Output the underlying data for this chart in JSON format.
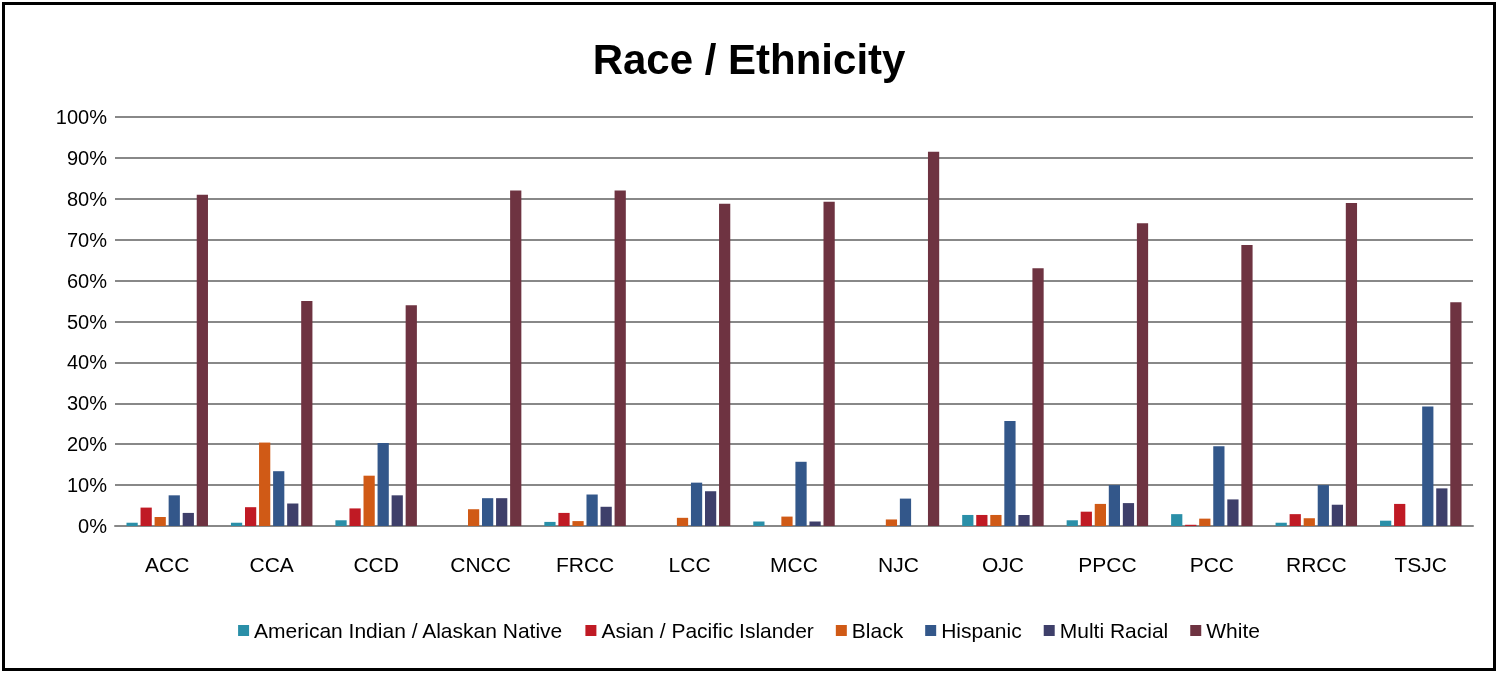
{
  "chart_data": {
    "type": "bar",
    "title": "Race / Ethnicity",
    "categories": [
      "ACC",
      "CCA",
      "CCD",
      "CNCC",
      "FRCC",
      "LCC",
      "MCC",
      "NJC",
      "OJC",
      "PPCC",
      "PCC",
      "RRCC",
      "TSJC"
    ],
    "series": [
      {
        "name": "American Indian / Alaskan Native",
        "color": "#2a8fa8",
        "values": [
          0.8,
          0.8,
          1.4,
          0,
          1.0,
          0,
          1.1,
          0,
          2.7,
          1.4,
          2.9,
          0.8,
          1.3
        ]
      },
      {
        "name": "Asian / Pacific Islander",
        "color": "#c01a24",
        "values": [
          4.5,
          4.6,
          4.3,
          0,
          3.2,
          0,
          0,
          0,
          2.7,
          3.5,
          0.3,
          2.9,
          5.4
        ]
      },
      {
        "name": "Black",
        "color": "#d05a16",
        "values": [
          2.2,
          20.4,
          12.3,
          4.1,
          1.2,
          2.0,
          2.3,
          1.6,
          2.7,
          5.4,
          1.8,
          1.9,
          0
        ]
      },
      {
        "name": "Hispanic",
        "color": "#33578a",
        "values": [
          7.5,
          13.4,
          20.3,
          6.8,
          7.7,
          10.6,
          15.7,
          6.7,
          25.7,
          10.0,
          19.5,
          10.0,
          29.2
        ]
      },
      {
        "name": "Multi Racial",
        "color": "#3e3f6a",
        "values": [
          3.2,
          5.5,
          7.5,
          6.8,
          4.7,
          8.5,
          1.1,
          0,
          2.7,
          5.6,
          6.5,
          5.2,
          9.2
        ]
      },
      {
        "name": "White",
        "color": "#6e3341",
        "values": [
          81,
          55,
          54,
          82,
          82,
          78.8,
          79.3,
          91.5,
          63,
          74,
          68.7,
          79,
          54.7
        ]
      }
    ],
    "ylim": [
      0,
      100
    ],
    "yticks": [
      {
        "value": 0,
        "label": "0%"
      },
      {
        "value": 10,
        "label": "10%"
      },
      {
        "value": 20,
        "label": "20%"
      },
      {
        "value": 30,
        "label": "30%"
      },
      {
        "value": 40,
        "label": "40%"
      },
      {
        "value": 50,
        "label": "50%"
      },
      {
        "value": 60,
        "label": "60%"
      },
      {
        "value": 70,
        "label": "70%"
      },
      {
        "value": 80,
        "label": "80%"
      },
      {
        "value": 90,
        "label": "90%"
      },
      {
        "value": 100,
        "label": "100%"
      }
    ],
    "grid": "y",
    "legend": "bottom"
  }
}
